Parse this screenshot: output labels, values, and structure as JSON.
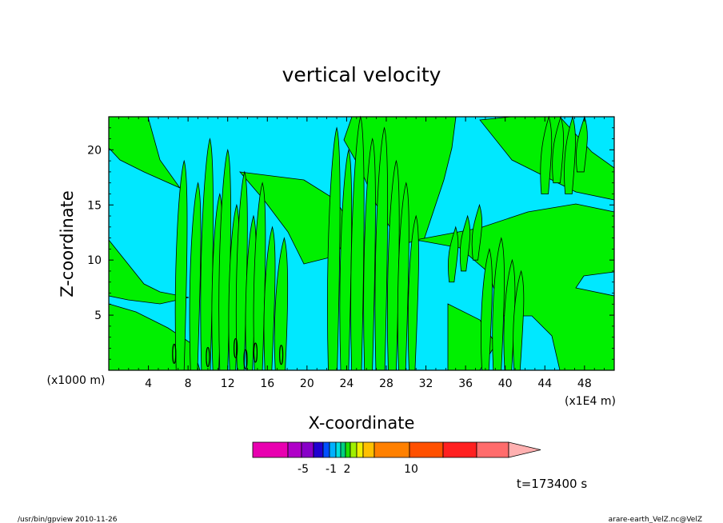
{
  "chart_data": {
    "type": "heatmap",
    "title": "vertical velocity",
    "xlabel": "X-coordinate",
    "ylabel": "Z-coordinate",
    "x_scale_label": "(x1000 m)",
    "x_unit_label": "(x1E4 m)",
    "xlim": [
      0,
      51
    ],
    "ylim": [
      0,
      23
    ],
    "x_ticks": [
      "4",
      "8",
      "12",
      "16",
      "20",
      "24",
      "28",
      "32",
      "36",
      "40",
      "44",
      "48"
    ],
    "y_ticks": [
      "5",
      "10",
      "15",
      "20"
    ],
    "colorbar_labels": [
      "-5",
      "-1",
      "2",
      "10"
    ],
    "colorbar_colors": [
      "#e800b0",
      "#b000c8",
      "#8800c8",
      "#2000d0",
      "#0050ff",
      "#00b0ff",
      "#00e0e0",
      "#00d080",
      "#20e000",
      "#a0f000",
      "#f0f000",
      "#ffc000",
      "#ff8000",
      "#ff5000",
      "#ff2020",
      "#ff6c6c",
      "#ffb0b0"
    ],
    "colors": {
      "positive": "#00f000",
      "negative": "#00e8ff",
      "contour": "#000000"
    },
    "time_label": "t=173400 s"
  },
  "footer": {
    "left": "/usr/bin/gpview  2010-11-26",
    "right": "arare-earth_VelZ.nc@VelZ"
  }
}
